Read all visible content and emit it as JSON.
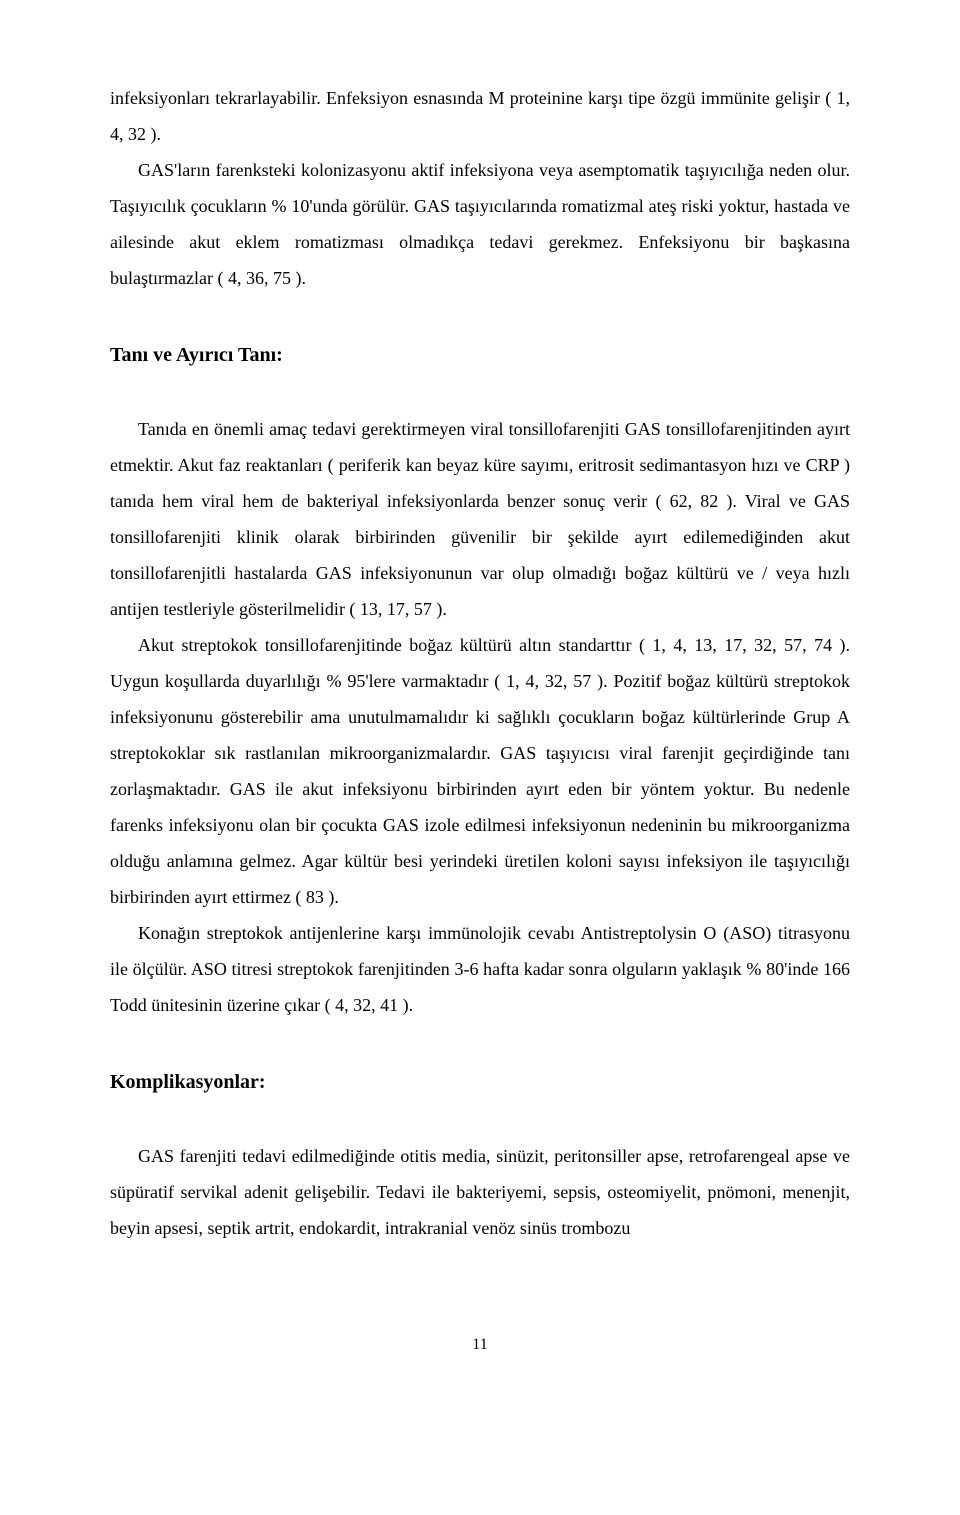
{
  "typography": {
    "body_font": "Times New Roman",
    "body_fontsize_pt": 12,
    "heading_fontsize_pt": 13,
    "line_height": 2.0,
    "text_color": "#000000",
    "background_color": "#ffffff"
  },
  "paragraphs": {
    "p1": "infeksiyonları tekrarlayabilir. Enfeksiyon esnasında M proteinine karşı tipe özgü immünite gelişir ( 1, 4, 32 ).",
    "p2": "GAS'ların farenksteki kolonizasyonu aktif infeksiyona veya asemptomatik taşıyıcılığa neden olur. Taşıyıcılık çocukların % 10'unda görülür. GAS taşıyıcılarında romatizmal ateş riski yoktur, hastada ve ailesinde akut eklem romatizması olmadıkça tedavi gerekmez. Enfeksiyonu bir başkasına bulaştırmazlar ( 4, 36, 75 ).",
    "h1": "Tanı ve Ayırıcı Tanı:",
    "p3": "Tanıda en önemli amaç tedavi gerektirmeyen viral tonsillofarenjiti GAS tonsillofarenjitinden ayırt etmektir. Akut faz reaktanları ( periferik kan beyaz küre sayımı, eritrosit sedimantasyon hızı ve CRP ) tanıda hem viral hem de bakteriyal infeksiyonlarda benzer sonuç verir ( 62, 82 ). Viral ve GAS tonsillofarenjiti klinik olarak birbirinden güvenilir bir şekilde ayırt edilemediğinden akut tonsillofarenjitli hastalarda GAS infeksiyonunun var olup olmadığı boğaz kültürü ve / veya hızlı antijen testleriyle gösterilmelidir ( 13, 17, 57 ).",
    "p4": "Akut streptokok tonsillofarenjitinde boğaz kültürü altın standarttır ( 1, 4, 13, 17, 32, 57, 74 ). Uygun koşullarda duyarlılığı % 95'lere varmaktadır ( 1, 4, 32, 57 ). Pozitif boğaz kültürü streptokok infeksiyonunu gösterebilir ama unutulmamalıdır ki sağlıklı çocukların boğaz kültürlerinde Grup A streptokoklar sık rastlanılan mikroorganizmalardır. GAS taşıyıcısı viral farenjit geçirdiğinde tanı zorlaşmaktadır. GAS ile akut infeksiyonu birbirinden ayırt eden bir yöntem yoktur. Bu nedenle farenks infeksiyonu olan bir çocukta GAS izole edilmesi infeksiyonun nedeninin bu mikroorganizma olduğu anlamına gelmez. Agar kültür besi yerindeki üretilen koloni sayısı infeksiyon ile taşıyıcılığı birbirinden ayırt ettirmez ( 83 ).",
    "p5": "Konağın streptokok antijenlerine karşı immünolojik cevabı Antistreptolysin O (ASO) titrasyonu ile ölçülür. ASO titresi streptokok farenjitinden 3-6 hafta kadar sonra olguların yaklaşık % 80'inde 166 Todd ünitesinin üzerine çıkar ( 4, 32, 41 ).",
    "h2": "Komplikasyonlar:",
    "p6": "GAS farenjiti tedavi edilmediğinde otitis media, sinüzit, peritonsiller apse, retrofarengeal apse ve süpüratif servikal adenit gelişebilir. Tedavi ile bakteriyemi, sepsis, osteomiyelit, pnömoni, menenjit, beyin apsesi, septik artrit, endokardit, intrakranial venöz sinüs trombozu"
  },
  "page_number": "11"
}
